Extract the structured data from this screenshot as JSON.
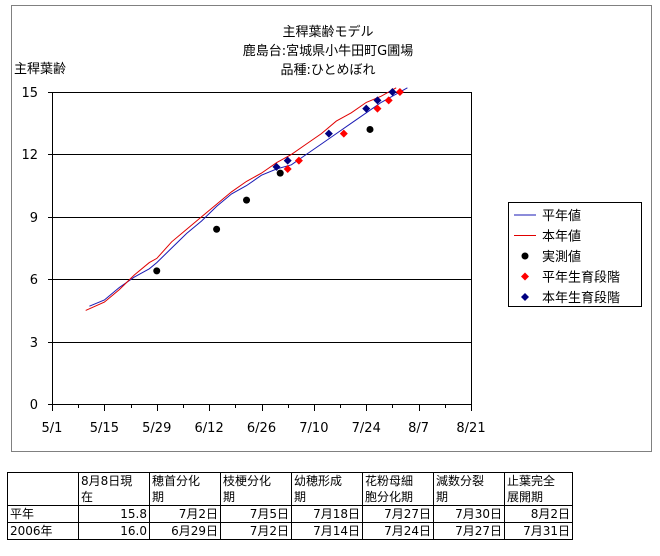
{
  "chart_data": {
    "type": "line",
    "title_lines": [
      "主稈葉齢モデル",
      "鹿島台:宮城県小牛田町G圃場",
      "品種:ひとめぼれ"
    ],
    "ylabel": "主稈葉齢",
    "xlabel": "",
    "ylim": [
      0,
      15
    ],
    "yticks": [
      0,
      3,
      6,
      9,
      12,
      15
    ],
    "x_tick_labels": [
      "5/1",
      "5/15",
      "5/29",
      "6/12",
      "6/26",
      "7/10",
      "7/24",
      "8/7",
      "8/21"
    ],
    "x_tick_days": [
      0,
      14,
      28,
      42,
      56,
      70,
      84,
      98,
      112
    ],
    "grid": "horizontal",
    "legend_position": "right",
    "series": [
      {
        "name": "平年値",
        "kind": "line",
        "color": "#1a1ab4",
        "points": [
          [
            10,
            4.7
          ],
          [
            14,
            5.0
          ],
          [
            18,
            5.6
          ],
          [
            22,
            6.1
          ],
          [
            26,
            6.5
          ],
          [
            28,
            6.8
          ],
          [
            32,
            7.5
          ],
          [
            36,
            8.2
          ],
          [
            40,
            8.8
          ],
          [
            44,
            9.5
          ],
          [
            48,
            10.1
          ],
          [
            52,
            10.5
          ],
          [
            56,
            11.0
          ],
          [
            60,
            11.3
          ],
          [
            64,
            11.5
          ],
          [
            68,
            12.0
          ],
          [
            72,
            12.5
          ],
          [
            76,
            13.0
          ],
          [
            80,
            13.5
          ],
          [
            84,
            14.0
          ],
          [
            88,
            14.5
          ],
          [
            92,
            14.9
          ],
          [
            95,
            15.2
          ]
        ]
      },
      {
        "name": "本年値",
        "kind": "line",
        "color": "#e00000",
        "points": [
          [
            9,
            4.5
          ],
          [
            14,
            4.9
          ],
          [
            18,
            5.5
          ],
          [
            22,
            6.2
          ],
          [
            26,
            6.8
          ],
          [
            28,
            7.0
          ],
          [
            32,
            7.8
          ],
          [
            36,
            8.4
          ],
          [
            40,
            9.0
          ],
          [
            44,
            9.6
          ],
          [
            48,
            10.2
          ],
          [
            52,
            10.7
          ],
          [
            56,
            11.1
          ],
          [
            60,
            11.6
          ],
          [
            64,
            12.0
          ],
          [
            68,
            12.5
          ],
          [
            72,
            13.0
          ],
          [
            76,
            13.6
          ],
          [
            80,
            14.0
          ],
          [
            84,
            14.5
          ],
          [
            88,
            14.8
          ],
          [
            92,
            15.2
          ]
        ]
      },
      {
        "name": "実測値",
        "kind": "marker",
        "marker": "circle",
        "color": "#000000",
        "points": [
          [
            28,
            6.4
          ],
          [
            44,
            8.4
          ],
          [
            52,
            9.8
          ],
          [
            61,
            11.1
          ],
          [
            85,
            13.2
          ]
        ]
      },
      {
        "name": "平年生育段階",
        "kind": "marker",
        "marker": "diamond",
        "color": "#ff0000",
        "points": [
          [
            63,
            11.3
          ],
          [
            66,
            11.7
          ],
          [
            78,
            13.0
          ],
          [
            87,
            14.2
          ],
          [
            90,
            14.6
          ],
          [
            93,
            15.0
          ]
        ]
      },
      {
        "name": "本年生育段階",
        "kind": "marker",
        "marker": "diamond",
        "color": "#000080",
        "points": [
          [
            60,
            11.4
          ],
          [
            63,
            11.7
          ],
          [
            74,
            13.0
          ],
          [
            84,
            14.2
          ],
          [
            87,
            14.6
          ],
          [
            91,
            15.0
          ]
        ]
      }
    ]
  },
  "table": {
    "header": [
      "",
      "8月8日現在",
      "穂首分化期",
      "枝梗分化期",
      "幼穂形成期",
      "花粉母細胞分化期",
      "減数分裂期",
      "止葉完全展開期"
    ],
    "header_lines": [
      [
        "",
        ""
      ],
      [
        "8月8日現",
        "在"
      ],
      [
        "穂首分化",
        "期"
      ],
      [
        "枝梗分化",
        "期"
      ],
      [
        "幼穂形成",
        "期"
      ],
      [
        "花粉母細",
        "胞分化期"
      ],
      [
        "減数分裂",
        "期"
      ],
      [
        "止葉完全",
        "展開期"
      ]
    ],
    "rows": [
      {
        "label": "平年",
        "values": [
          "15.8",
          "7月2日",
          "7月5日",
          "7月18日",
          "7月27日",
          "7月30日",
          "8月2日"
        ]
      },
      {
        "label": "2006年",
        "values": [
          "16.0",
          "6月29日",
          "7月2日",
          "7月14日",
          "7月24日",
          "7月27日",
          "7月31日"
        ]
      }
    ]
  }
}
